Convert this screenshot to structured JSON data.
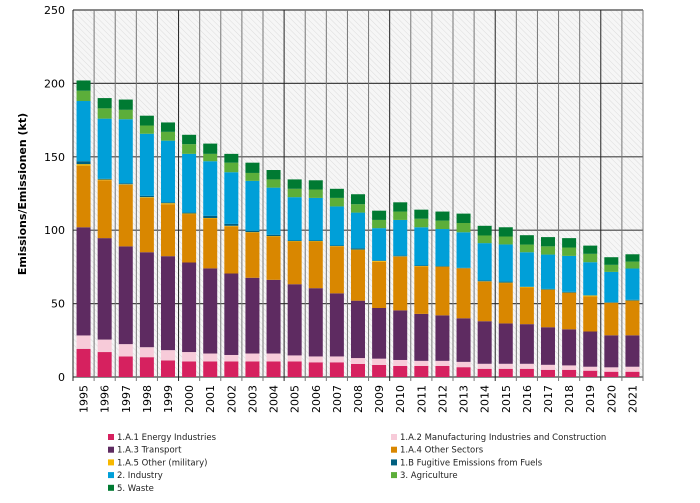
{
  "chart_data": {
    "type": "bar",
    "stacked": true,
    "title": "",
    "xlabel": "",
    "ylabel": "Emissions/Emissionen (kt)",
    "ylim": [
      0,
      250
    ],
    "yticks": [
      0,
      50,
      100,
      150,
      200,
      250
    ],
    "grid": true,
    "legend_position": "bottom",
    "categories": [
      "1995",
      "1996",
      "1997",
      "1998",
      "1999",
      "2000",
      "2001",
      "2002",
      "2003",
      "2004",
      "2005",
      "2006",
      "2007",
      "2008",
      "2009",
      "2010",
      "2011",
      "2012",
      "2013",
      "2014",
      "2015",
      "2016",
      "2017",
      "2018",
      "2019",
      "2020",
      "2021"
    ],
    "series": [
      {
        "name": "1.A.1 Energy Industries",
        "color": "#d6215f",
        "values": [
          19.2,
          17,
          14,
          13.5,
          11.3,
          10.6,
          10.6,
          10.6,
          10.6,
          10.6,
          10.6,
          10,
          10,
          8.9,
          8.2,
          7.5,
          7.5,
          7.5,
          6.7,
          5.6,
          5.6,
          5.6,
          4.9,
          4.9,
          4.3,
          3.6,
          3.6
        ]
      },
      {
        "name": "1.A.2 Manufacturing Industries and Construction",
        "color": "#f7cbd9",
        "values": [
          9.1,
          8.5,
          8.4,
          6.8,
          7,
          6.4,
          5.4,
          4.4,
          5.4,
          5.4,
          4.1,
          4,
          4,
          4,
          4.3,
          4.1,
          3.5,
          3.5,
          3.6,
          3.4,
          3.4,
          3.4,
          3.4,
          3,
          2.7,
          3,
          3.4
        ]
      },
      {
        "name": "1.A.3 Transport",
        "color": "#5e2b61",
        "values": [
          73.7,
          69.1,
          66.6,
          64.7,
          64,
          61,
          58,
          55.5,
          51.6,
          50.2,
          48.5,
          46.5,
          43,
          39.1,
          34.5,
          33.8,
          32,
          31,
          29.7,
          29,
          27.5,
          27,
          25.6,
          24.6,
          24,
          21.8,
          21.4
        ]
      },
      {
        "name": "1.A.4 Other Sectors",
        "color": "#d98700",
        "values": [
          42,
          39.4,
          42,
          37,
          35.4,
          33,
          34,
          32.2,
          30.8,
          29.5,
          29.1,
          31.8,
          32,
          34.5,
          31.5,
          36.6,
          32.4,
          33,
          34,
          27,
          27.5,
          25,
          25.5,
          24.8,
          23.9,
          22,
          23.5
        ]
      },
      {
        "name": "1.A.5 Other (military)",
        "color": "#f7b800",
        "values": [
          1,
          0.5,
          0.3,
          0.5,
          0.7,
          0.4,
          0.3,
          0.3,
          0.3,
          0.3,
          0.3,
          0.3,
          0.2,
          0.3,
          0.6,
          0.2,
          0.2,
          0.2,
          0.1,
          0.2,
          0.3,
          0.4,
          0.2,
          0.2,
          0.6,
          0.2,
          0.2
        ]
      },
      {
        "name": "1.B Fugitive Emissions from Fuels",
        "color": "#005f7f",
        "values": [
          2,
          0.5,
          0.7,
          0.9,
          0.6,
          0.6,
          1.5,
          1.3,
          0.9,
          0.9,
          0.4,
          0.4,
          0.4,
          0.9,
          0.3,
          0.5,
          0.4,
          0.4,
          0.3,
          0.5,
          0.7,
          0.1,
          0.4,
          0.5,
          0.1,
          0.4,
          0.5
        ]
      },
      {
        "name": "2. Industry",
        "color": "#009fd8",
        "values": [
          41,
          41,
          43.6,
          42.3,
          42,
          40,
          37.2,
          35.2,
          34,
          32.1,
          29.5,
          29,
          26.6,
          24.3,
          22,
          24.3,
          26,
          25.2,
          24.2,
          25.5,
          25.3,
          23.5,
          23.4,
          24.5,
          22.6,
          20.6,
          21.3
        ]
      },
      {
        "name": "3. Agriculture",
        "color": "#5cae3a",
        "values": [
          7,
          7,
          6.4,
          5.6,
          6,
          6.6,
          5,
          6.5,
          5.4,
          5.6,
          5.7,
          5.7,
          5.8,
          5.7,
          5.6,
          5.7,
          5.8,
          5.7,
          6.3,
          5.2,
          5.4,
          5.2,
          5.6,
          5.7,
          5.7,
          4.8,
          4.7
        ]
      },
      {
        "name": "5. Waste",
        "color": "#007a32",
        "values": [
          7,
          7,
          7,
          6.7,
          6.4,
          6.4,
          7,
          6,
          7,
          6.4,
          6.4,
          6.3,
          6.2,
          6.8,
          6.3,
          6.3,
          6.2,
          6.2,
          6.4,
          6.6,
          6.3,
          6.4,
          6.3,
          6.4,
          5.6,
          5.2,
          5
        ]
      }
    ],
    "legend_order": [
      0,
      1,
      2,
      3,
      4,
      5,
      6,
      7,
      8
    ]
  }
}
